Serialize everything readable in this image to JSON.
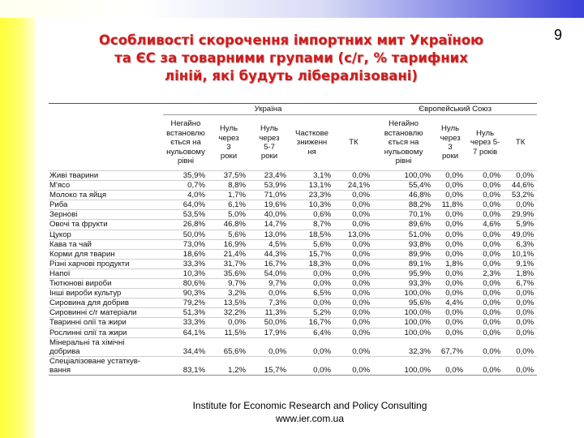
{
  "page_number": "9",
  "title_lines": [
    "Особливості скорочення імпортних мит Україною",
    "та ЄС за товарними групами (с/г, % тарифних",
    "ліній, які будуть лібералізовані)"
  ],
  "table": {
    "group_headers": [
      "Україна",
      "Європейський Союз"
    ],
    "ua_columns": [
      [
        "Негайно",
        "встановлю",
        "ється на",
        "нульовому",
        "рівні"
      ],
      [
        "Нуль",
        "через",
        "3",
        "роки"
      ],
      [
        "Нуль",
        "через",
        "5-7",
        "роки"
      ],
      [
        "Часткове",
        "зниженн",
        "ня"
      ],
      [
        "ТК"
      ]
    ],
    "eu_columns": [
      [
        "Негайно",
        "встановлю",
        "ється на",
        "нульовому",
        "рівні"
      ],
      [
        "Нуль",
        "через",
        "3",
        "роки"
      ],
      [
        "Нуль",
        "через 5-",
        "7 років"
      ],
      [
        "ТК"
      ]
    ],
    "rows": [
      {
        "label": [
          "Живі тварини"
        ],
        "values": [
          "35,9%",
          "37,5%",
          "23,4%",
          "3,1%",
          "0,0%",
          "100,0%",
          "0,0%",
          "0,0%",
          "0,0%"
        ]
      },
      {
        "label": [
          "М'ясо"
        ],
        "values": [
          "0,7%",
          "8,8%",
          "53,9%",
          "13,1%",
          "24,1%",
          "55,4%",
          "0,0%",
          "0,0%",
          "44,6%"
        ]
      },
      {
        "label": [
          "Молоко та яйця"
        ],
        "values": [
          "4,0%",
          "1,7%",
          "71,0%",
          "23,3%",
          "0,0%",
          "46,8%",
          "0,0%",
          "0,0%",
          "53,2%"
        ]
      },
      {
        "label": [
          "Риба"
        ],
        "values": [
          "64,0%",
          "6,1%",
          "19,6%",
          "10,3%",
          "0,0%",
          "88,2%",
          "11,8%",
          "0,0%",
          "0,0%"
        ]
      },
      {
        "label": [
          "Зернові"
        ],
        "values": [
          "53,5%",
          "5,0%",
          "40,0%",
          "0,6%",
          "0,0%",
          "70,1%",
          "0,0%",
          "0,0%",
          "29,9%"
        ]
      },
      {
        "label": [
          "Овочі та фрукти"
        ],
        "values": [
          "26,8%",
          "46,8%",
          "14,7%",
          "8,7%",
          "0,0%",
          "89,6%",
          "0,0%",
          "4,6%",
          "5,9%"
        ]
      },
      {
        "label": [
          "Цукор"
        ],
        "values": [
          "50,0%",
          "5,6%",
          "13,0%",
          "18,5%",
          "13,0%",
          "51,0%",
          "0,0%",
          "0,0%",
          "49,0%"
        ]
      },
      {
        "label": [
          "Кава та чай"
        ],
        "values": [
          "73,0%",
          "16,9%",
          "4,5%",
          "5,6%",
          "0,0%",
          "93,8%",
          "0,0%",
          "0,0%",
          "6,3%"
        ]
      },
      {
        "label": [
          "Корми для тварин"
        ],
        "values": [
          "18,6%",
          "21,4%",
          "44,3%",
          "15,7%",
          "0,0%",
          "89,9%",
          "0,0%",
          "0,0%",
          "10,1%"
        ]
      },
      {
        "label": [
          "Різні харчові продукти"
        ],
        "values": [
          "33,3%",
          "31,7%",
          "16,7%",
          "18,3%",
          "0,0%",
          "89,1%",
          "1,8%",
          "0,0%",
          "9,1%"
        ]
      },
      {
        "label": [
          "Напої"
        ],
        "values": [
          "10,3%",
          "35,6%",
          "54,0%",
          "0,0%",
          "0,0%",
          "95,9%",
          "0,0%",
          "2,3%",
          "1,8%"
        ]
      },
      {
        "label": [
          "Тютюнові вироби"
        ],
        "values": [
          "80,6%",
          "9,7%",
          "9,7%",
          "0,0%",
          "0,0%",
          "93,3%",
          "0,0%",
          "0,0%",
          "6,7%"
        ]
      },
      {
        "label": [
          "Інші вироби культур"
        ],
        "values": [
          "90,3%",
          "3,2%",
          "0,0%",
          "6,5%",
          "0,0%",
          "100,0%",
          "0,0%",
          "0,0%",
          "0,0%"
        ]
      },
      {
        "label": [
          "Сировина для добрив"
        ],
        "values": [
          "79,2%",
          "13,5%",
          "7,3%",
          "0,0%",
          "0,0%",
          "95,6%",
          "4,4%",
          "0,0%",
          "0,0%"
        ]
      },
      {
        "label": [
          "Сировинні с/г матеріали"
        ],
        "values": [
          "51,3%",
          "32,2%",
          "11,3%",
          "5,2%",
          "0,0%",
          "100,0%",
          "0,0%",
          "0,0%",
          "0,0%"
        ]
      },
      {
        "label": [
          "Тваринні олії та жири"
        ],
        "values": [
          "33,3%",
          "0,0%",
          "50,0%",
          "16,7%",
          "0,0%",
          "100,0%",
          "0,0%",
          "0,0%",
          "0,0%"
        ]
      },
      {
        "label": [
          "Рослинні олії та жири"
        ],
        "values": [
          "64,1%",
          "11,5%",
          "17,9%",
          "6,4%",
          "0,0%",
          "100,0%",
          "0,0%",
          "0,0%",
          "0,0%"
        ]
      },
      {
        "label": [
          "Мінеральні та хімічні",
          "добрива"
        ],
        "values": [
          "34,4%",
          "65,6%",
          "0,0%",
          "0,0%",
          "0,0%",
          "32,3%",
          "67,7%",
          "0,0%",
          "0,0%"
        ]
      },
      {
        "label": [
          "Спеціалізоване устаткув-",
          "вання"
        ],
        "values": [
          "83,1%",
          "1,2%",
          "15,7%",
          "0,0%",
          "0,0%",
          "100,0%",
          "0,0%",
          "0,0%",
          "0,0%"
        ]
      }
    ]
  },
  "footer": {
    "line1": "Institute for Economic Research and Policy Consulting",
    "line2": "www.ier.com.ua"
  }
}
